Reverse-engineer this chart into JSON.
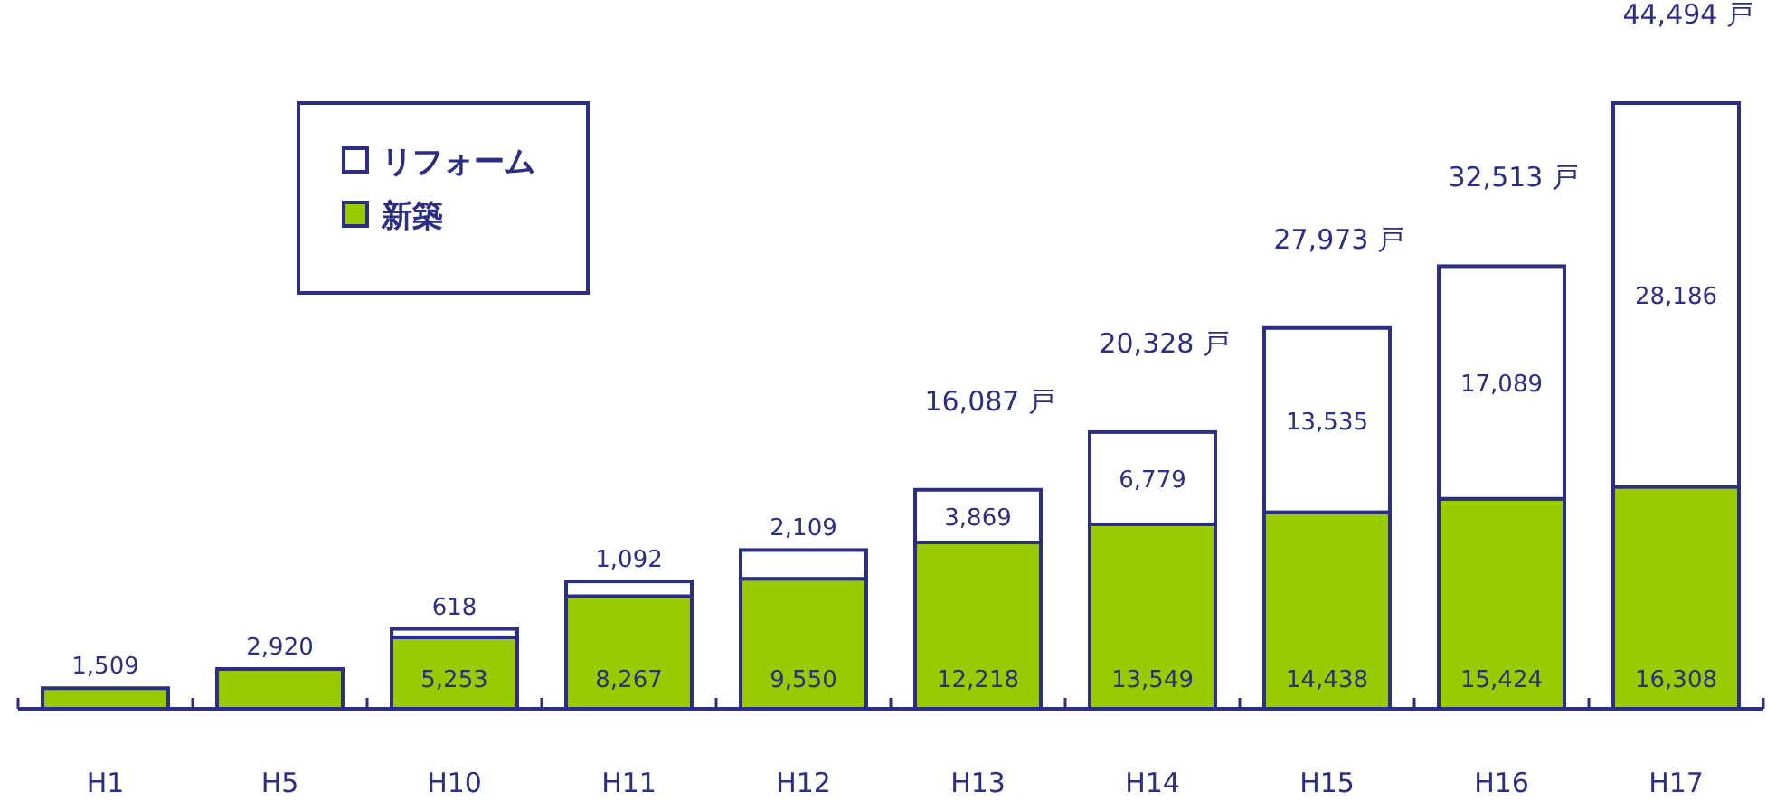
{
  "chart_data": {
    "type": "bar",
    "stacked": true,
    "categories": [
      "H1",
      "H5",
      "H10",
      "H11",
      "H12",
      "H13",
      "H14",
      "H15",
      "H16",
      "H17"
    ],
    "series": [
      {
        "name": "新築",
        "color": "#99cc00",
        "values": [
          1509,
          2920,
          5253,
          8267,
          9550,
          12218,
          13549,
          14438,
          15424,
          16308
        ],
        "value_labels": [
          "1,509",
          "2,920",
          "5,253",
          "8,267",
          "9,550",
          "12,218",
          "13,549",
          "14,438",
          "15,424",
          "16,308"
        ]
      },
      {
        "name": "リフォーム",
        "color": "#ffffff",
        "values": [
          null,
          null,
          618,
          1092,
          2109,
          3869,
          6779,
          13535,
          17089,
          28186
        ],
        "value_labels": [
          null,
          null,
          "618",
          "1,092",
          "2,109",
          "3,869",
          "6,779",
          "13,535",
          "17,089",
          "28,186"
        ]
      }
    ],
    "totals": [
      null,
      null,
      null,
      null,
      null,
      "16,087 戸",
      "20,328 戸",
      "27,973 戸",
      "32,513 戸",
      "44,494 戸"
    ],
    "legend": "top left"
  }
}
